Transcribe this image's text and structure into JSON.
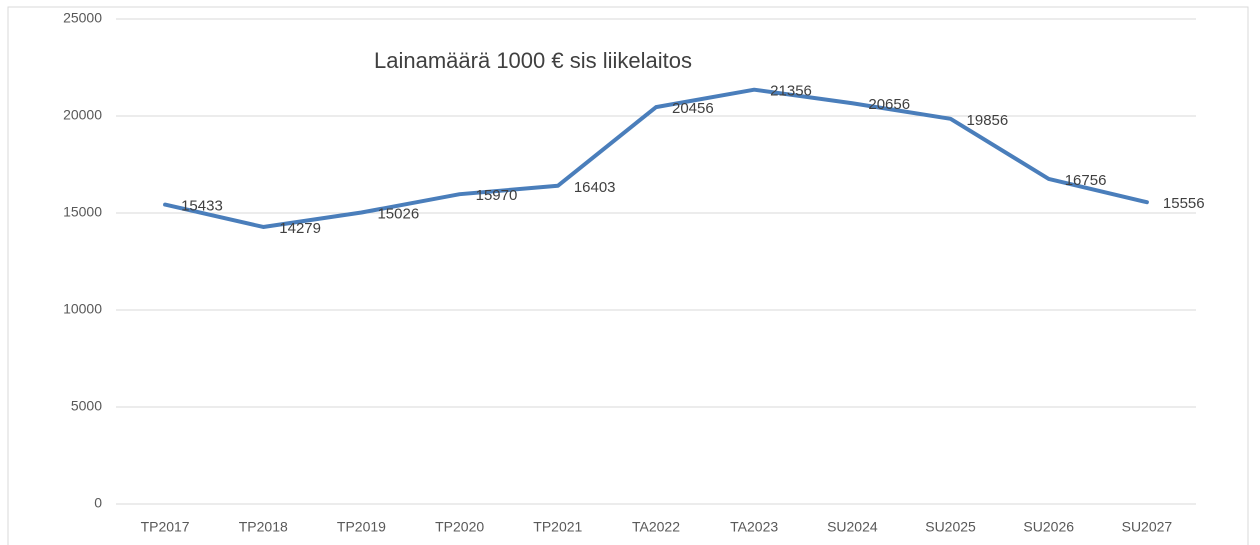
{
  "chart_data": {
    "type": "line",
    "title": "Lainamäärä 1000 € sis liikelaitos",
    "categories": [
      "TP2017",
      "TP2018",
      "TP2019",
      "TP2020",
      "TP2021",
      "TA2022",
      "TA2023",
      "SU2024",
      "SU2025",
      "SU2026",
      "SU2027"
    ],
    "values": [
      15433,
      14279,
      15026,
      15970,
      16403,
      20456,
      21356,
      20656,
      19856,
      16756,
      15556
    ],
    "color": "#4a7ebb",
    "ylim": [
      0,
      25000
    ],
    "yticks": [
      0,
      5000,
      10000,
      15000,
      20000,
      25000
    ],
    "grid": true
  }
}
